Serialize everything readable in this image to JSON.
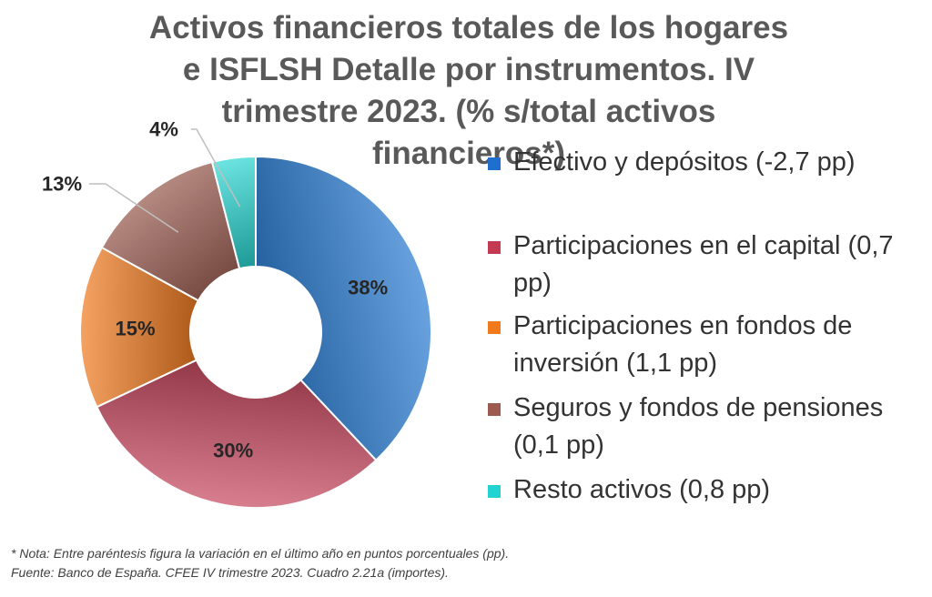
{
  "chart_data": {
    "type": "pie",
    "title": "Activos financieros totales de los hogares e ISFLSH Detalle por instrumentos. IV trimestre 2023. (% s/total activos financieros*)",
    "categories": [
      "Efectivo y depósitos (-2,7 pp)",
      "Participaciones en el capital (0,7 pp)",
      "Participaciones en fondos de inversión (1,1 pp)",
      "Seguros y fondos de pensiones (0,1 pp)",
      "Resto activos (0,8 pp)"
    ],
    "values": [
      38,
      30,
      15,
      13,
      4
    ],
    "value_labels": [
      "38%",
      "30%",
      "15%",
      "13%",
      "4%"
    ],
    "colors": [
      "#2b7fd6",
      "#c94a60",
      "#f07c22",
      "#a86a5e",
      "#2dd8d4"
    ],
    "donut": true,
    "legend_position": "right"
  },
  "legend": [
    {
      "label": "Efectivo y depósitos  (-2,7 pp)",
      "color": "#1f6fcf"
    },
    {
      "label": "Participaciones en el capital (0,7 pp)",
      "color": "#c23b52"
    },
    {
      "label": "Participaciones en fondos de inversión  (1,1 pp)",
      "color": "#f07a1c"
    },
    {
      "label": "Seguros y fondos de pensiones      (0,1 pp)",
      "color": "#9c5a50"
    },
    {
      "label": "Resto activos  (0,8 pp)",
      "color": "#22d3d0"
    }
  ],
  "notes": {
    "note": "* Nota: Entre paréntesis figura la variación en el último año en puntos porcentuales (pp).",
    "source": "Fuente: Banco de España. CFEE IV trimestre 2023. Cuadro 2.21a (importes)."
  }
}
